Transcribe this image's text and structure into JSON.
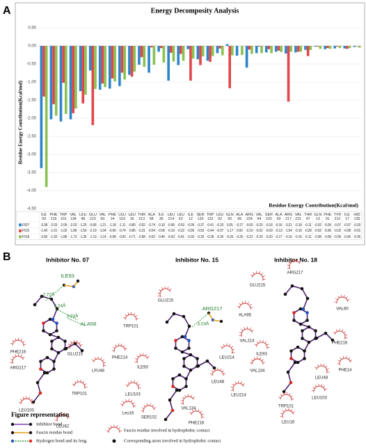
{
  "panel_labels": [
    "A",
    "B"
  ],
  "chart_data": {
    "type": "bar",
    "title": "Energy Decomposity Analysis",
    "y_label": "Residue Energy Contribution(Kcal/mol)",
    "x_label": "Residue Energy Contribution(Kcal/mol)",
    "categories": [
      "ILE 93",
      "PHE 216",
      "TRP 101",
      "VAL 134",
      "LEU 48",
      "GLU 215",
      "VAL 60",
      "PHE 14",
      "LEU 103",
      "LEU 16",
      "THR 213",
      "ALA 58",
      "ILE 36",
      "LEU 214",
      "LEU 62",
      "ILE 12",
      "SER 133",
      "TRP 132",
      "LEU 92",
      "GLN 50",
      "ALA 95",
      "ARG 224",
      "VAL 94",
      "SER 102",
      "ALA 59",
      "ARG 217",
      "VAL 221",
      "THR 47",
      "GLN 13",
      "PHE 91",
      "TYR 212",
      "ILE 17",
      "HID 135"
    ],
    "series": [
      {
        "name": "FI07",
        "color": "#2e86c8",
        "values": [
          -3.38,
          -2.03,
          -2.09,
          -2.03,
          -1.25,
          -0.68,
          -1.21,
          -1.18,
          -1.11,
          -0.8,
          -0.52,
          -0.74,
          -0.16,
          -0.96,
          -0.53,
          -0.09,
          -0.37,
          -0.41,
          -0.2,
          0.05,
          -0.27,
          -0.6,
          -0.2,
          -0.18,
          -0.16,
          -0.21,
          -0.18,
          -0.11,
          -0.02,
          -0.09,
          -0.07,
          -0.07,
          -0.03
        ],
        "value_labels": [
          "-3.38",
          "-2.03",
          "-2.09",
          "-2.03",
          "-1.25",
          "-0.68",
          "-1.21",
          "-1.18",
          "-1.11",
          "-0.80",
          "-0.52",
          "-0.74",
          "-0.16",
          "-0.96",
          "-0.53",
          "-0.09",
          "-0.37",
          "-0.41",
          "-0.20",
          "0.05",
          "-0.27",
          "-0.60",
          "-0.20",
          "-0.18",
          "-0.16",
          "-0.21",
          "-0.18",
          "-0.11",
          "-0.02",
          "-0.09",
          "-0.07",
          "-0.07",
          "-0.03"
        ]
      },
      {
        "name": "FI15",
        "color": "#e0474c",
        "values": [
          -1.4,
          -1.61,
          -1.02,
          -1.86,
          -1.59,
          -2.19,
          -1.04,
          -0.9,
          -0.74,
          -0.85,
          -0.31,
          -0.04,
          -0.06,
          -0.19,
          -0.22,
          -0.96,
          -0.53,
          -0.44,
          -0.07,
          -1.17,
          0,
          -0.1,
          -0.02,
          -0.09,
          -0.13,
          -1.54,
          -0.16,
          -0.28,
          -0.02,
          -0.06,
          -0.02,
          -0.08,
          -0.01
        ],
        "value_labels": [
          "-1.40",
          "-1.61",
          "-1.02",
          "-1.86",
          "-1.59",
          "-2.19",
          "-1.04",
          "-0.90",
          "-0.74",
          "-0.85",
          "-0.31",
          "-0.04",
          "-0.06",
          "-0.19",
          "-0.22",
          "-0.96",
          "-0.53",
          "-0.44",
          "-0.07",
          "-1.17",
          "0.00",
          "-0.10",
          "-0.02",
          "-0.09",
          "-0.13",
          "-1.54",
          "-0.16",
          "-0.28",
          "-0.02",
          "-0.06",
          "-0.02",
          "-0.08",
          "-0.01"
        ]
      },
      {
        "name": "FI18",
        "color": "#8cc152",
        "values": [
          -3.9,
          -1.93,
          -1.88,
          -1.73,
          -1.35,
          -1.19,
          -1.14,
          -0.98,
          -0.93,
          -0.71,
          -0.58,
          -0.52,
          -0.46,
          -0.43,
          -0.41,
          -0.35,
          -0.29,
          -0.28,
          -0.26,
          -0.26,
          -0.25,
          -0.22,
          -0.2,
          -0.2,
          -0.17,
          -0.16,
          -0.16,
          -0.11,
          -0.08,
          -0.08,
          -0.06,
          -0.06,
          -0.05
        ],
        "value_labels": [
          "-3.90",
          "-1.93",
          "-1.88",
          "-1.73",
          "-1.35",
          "-1.19",
          "-1.14",
          "-0.98",
          "-0.93",
          "-0.71",
          "-0.58",
          "-0.52",
          "-0.46",
          "-0.43",
          "-0.41",
          "-0.35",
          "-0.29",
          "-0.28",
          "-0.26",
          "-0.26",
          "-0.25",
          "-0.22",
          "-0.20",
          "-0.20",
          "-0.17",
          "-0.16",
          "-0.16",
          "-0.11",
          "-0.08",
          "-0.08",
          "-0.06",
          "-0.06",
          "-0.05"
        ]
      }
    ],
    "ylim": [
      -4.5,
      0.5
    ],
    "yticks": [
      {
        "value": 0.5,
        "label": "0.50"
      },
      {
        "value": 0,
        "label": "0.00"
      },
      {
        "value": -0.5,
        "label": "-0.50"
      },
      {
        "value": -1,
        "label": "-1.00"
      },
      {
        "value": -1.5,
        "label": "-1.50"
      },
      {
        "value": -2,
        "label": "-2.00"
      },
      {
        "value": -2.5,
        "label": "-2.50"
      },
      {
        "value": -3,
        "label": "-3.00"
      },
      {
        "value": -3.5,
        "label": "-3.50"
      },
      {
        "value": -4,
        "label": "-4.00"
      },
      {
        "value": -4.5,
        "label": "-4.50"
      }
    ],
    "grid": true
  },
  "diagrams": [
    {
      "title": "Inhibitor No. 07",
      "residues": [
        "ILE93",
        "ALA58",
        "PHE216",
        "GLU215",
        "ARG217",
        "LFU48",
        "TRP101",
        "LEU100",
        "LEU62"
      ],
      "distances": [
        "2.72Å",
        "3.24Å",
        "3.03Å"
      ]
    },
    {
      "title": "Inhibitor No. 15",
      "residues": [
        "GLU215",
        "ARG217",
        "TRP101",
        "PHE214",
        "ILE93",
        "LEU214",
        "LEU103",
        "LEU48",
        "SER102",
        "VAL134",
        "PHE216",
        "Leu16"
      ],
      "distances": [
        "3.03Å"
      ]
    },
    {
      "title": "Inhibitor No. 18",
      "residues": [
        "ARG217",
        "GLU215",
        "ALA95",
        "VAL60",
        "VAL214",
        "PHE216",
        "ILE93",
        "VAL134",
        "PHE14",
        "LEU214",
        "LEU48",
        "TRP101",
        "LEU103",
        "LEU16"
      ],
      "distances": []
    }
  ],
  "legend": {
    "title": "Figure representation",
    "items": [
      "Inhibitor bond",
      "Fascin residue bond",
      "Hydrogen bond and its leng",
      "Fascin residue involved in hydrophobic contact",
      "Corresponding atom involved in hydrophobic contact"
    ]
  }
}
